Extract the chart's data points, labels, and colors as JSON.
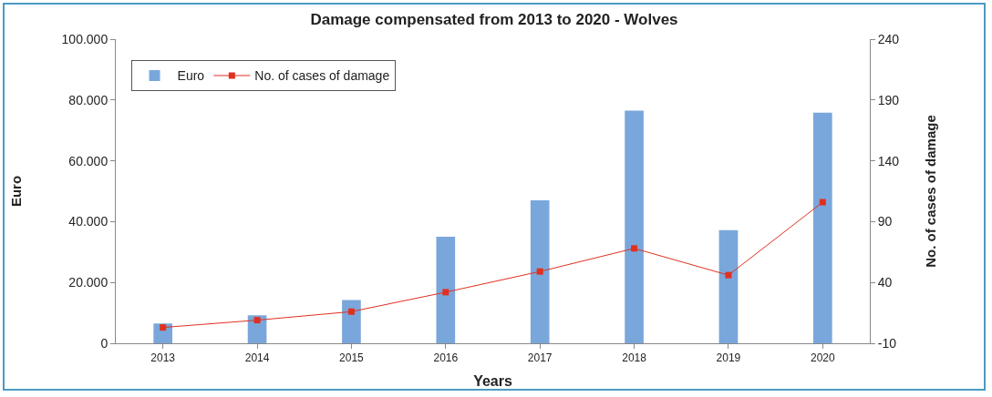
{
  "chart_data": {
    "type": "bar",
    "title": "Damage compensated from 2013 to 2020 - Wolves",
    "xlabel": "Years",
    "ylabel": "Euro",
    "y2label": "No. of cases of damage",
    "categories": [
      "2013",
      "2014",
      "2015",
      "2016",
      "2017",
      "2018",
      "2019",
      "2020"
    ],
    "series": [
      {
        "name": "Euro",
        "color": "#7aa7db",
        "values": [
          6500,
          9200,
          14200,
          35000,
          47000,
          76500,
          37200,
          75800
        ]
      },
      {
        "name": "No. of cases of damage",
        "type": "line",
        "axis": "y2",
        "color": "#e03020",
        "marker": "square",
        "values": [
          3,
          9,
          16,
          32,
          49,
          68,
          46,
          106
        ]
      }
    ],
    "ylim": [
      0,
      100000
    ],
    "yticks": [
      0,
      {
        "value": 20000,
        "label": "20.000"
      },
      {
        "value": 40000,
        "label": "40.000"
      },
      {
        "value": 60000,
        "label": "60.000"
      },
      {
        "value": 80000,
        "label": "80.000"
      },
      {
        "value": 100000,
        "label": "100.000"
      }
    ],
    "y2lim": [
      -10,
      240
    ],
    "y2ticks": [
      -10,
      40,
      90,
      140,
      190,
      240
    ],
    "grid": false,
    "legend": "top left"
  }
}
